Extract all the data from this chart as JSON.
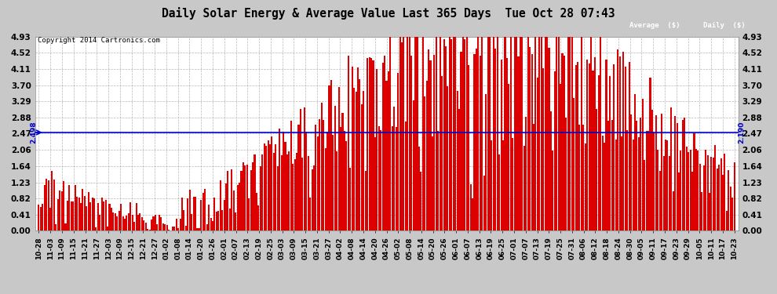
{
  "title": "Daily Solar Energy & Average Value Last 365 Days  Tue Oct 28 07:43",
  "copyright": "Copyright 2014 Cartronics.com",
  "average_value": 2.498,
  "average_label": "2.498",
  "average_right_label": "2.190",
  "bar_color": "#dd0000",
  "average_line_color": "#0000cc",
  "background_color": "#c8c8c8",
  "plot_bg_color": "#ffffff",
  "grid_color": "#999999",
  "yticks": [
    0.0,
    0.41,
    0.82,
    1.23,
    1.64,
    2.06,
    2.47,
    2.88,
    3.29,
    3.7,
    4.11,
    4.52,
    4.93
  ],
  "ylim": [
    0,
    4.93
  ],
  "legend_avg_color": "#000099",
  "legend_daily_color": "#cc0000",
  "xtick_labels": [
    "10-28",
    "11-03",
    "11-09",
    "11-15",
    "11-21",
    "11-27",
    "12-03",
    "12-09",
    "12-15",
    "12-21",
    "12-27",
    "01-02",
    "01-08",
    "01-14",
    "01-20",
    "01-26",
    "02-01",
    "02-07",
    "02-13",
    "02-19",
    "02-25",
    "03-03",
    "03-09",
    "03-15",
    "03-21",
    "03-27",
    "04-02",
    "04-08",
    "04-14",
    "04-20",
    "04-26",
    "05-02",
    "05-08",
    "05-14",
    "05-20",
    "05-26",
    "06-01",
    "06-07",
    "06-13",
    "06-19",
    "06-25",
    "07-01",
    "07-07",
    "07-13",
    "07-19",
    "07-25",
    "07-31",
    "08-06",
    "08-12",
    "08-18",
    "08-24",
    "08-30",
    "09-05",
    "09-11",
    "09-17",
    "09-23",
    "09-29",
    "10-05",
    "10-11",
    "10-17",
    "10-23"
  ],
  "figsize": [
    9.9,
    3.75
  ],
  "dpi": 100
}
